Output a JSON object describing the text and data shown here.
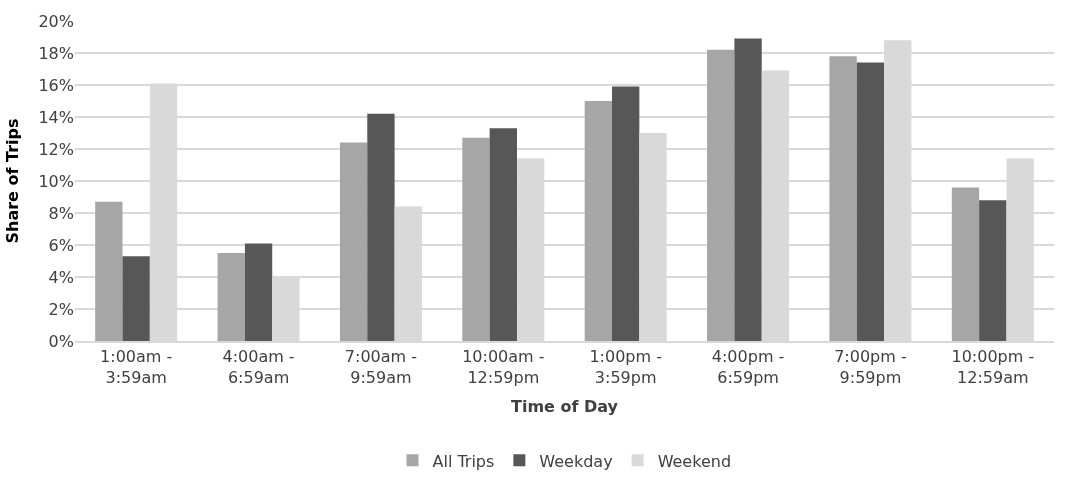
{
  "chart_data": {
    "type": "bar",
    "xlabel": "Time of Day",
    "ylabel": "Share of Trips",
    "categories": [
      "1:00am -\n3:59am",
      "4:00am -\n6:59am",
      "7:00am -\n9:59am",
      "10:00am -\n12:59pm",
      "1:00pm -\n3:59pm",
      "4:00pm -\n6:59pm",
      "7:00pm -\n9:59pm",
      "10:00pm -\n12:59am"
    ],
    "series": [
      {
        "name": "All Trips",
        "color": "#a6a6a6",
        "values": [
          8.7,
          5.5,
          12.4,
          12.7,
          15.0,
          18.2,
          17.8,
          9.6
        ]
      },
      {
        "name": "Weekday",
        "color": "#575757",
        "values": [
          5.3,
          6.1,
          14.2,
          13.3,
          15.9,
          18.9,
          17.4,
          8.8
        ]
      },
      {
        "name": "Weekend",
        "color": "#d9d9d9",
        "values": [
          16.1,
          4.0,
          8.4,
          11.4,
          13.0,
          16.9,
          18.8,
          11.4
        ]
      }
    ],
    "ylim": [
      0,
      20
    ],
    "yticks": [
      {
        "value": 0,
        "label": "0%"
      },
      {
        "value": 2,
        "label": "2%"
      },
      {
        "value": 4,
        "label": "4%"
      },
      {
        "value": 6,
        "label": "6%"
      },
      {
        "value": 8,
        "label": "8%"
      },
      {
        "value": 10,
        "label": "10%"
      },
      {
        "value": 12,
        "label": "12%"
      },
      {
        "value": 14,
        "label": "14%"
      },
      {
        "value": 16,
        "label": "16%"
      },
      {
        "value": 18,
        "label": "18%"
      },
      {
        "value": 20,
        "label": "20%"
      }
    ],
    "grid": "y",
    "legend": "bottom"
  }
}
